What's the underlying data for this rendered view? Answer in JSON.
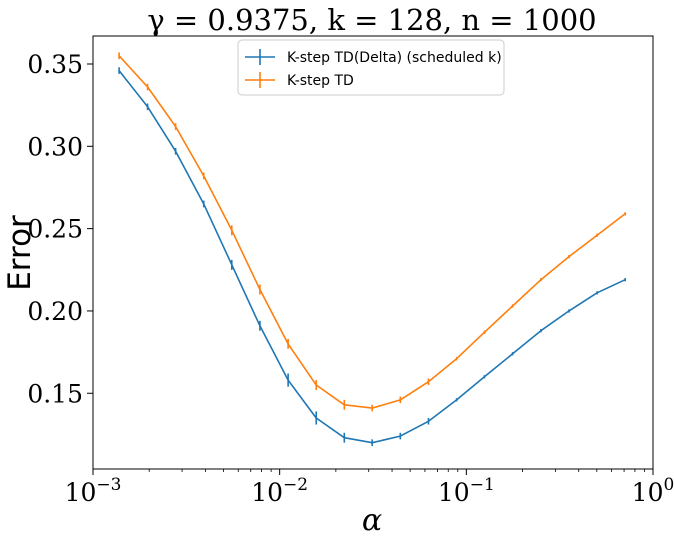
{
  "chart_data": {
    "type": "line",
    "title": "γ = 0.9375, k = 128, n = 1000",
    "xlabel": "α",
    "ylabel": "Error",
    "xscale": "log",
    "xlim": [
      0.001,
      1
    ],
    "ylim": [
      0.104,
      0.367
    ],
    "xticks": [
      {
        "value": 0.001,
        "label": "10",
        "exp": "−3"
      },
      {
        "value": 0.01,
        "label": "10",
        "exp": "−2"
      },
      {
        "value": 0.1,
        "label": "10",
        "exp": "−1"
      },
      {
        "value": 1,
        "label": "10",
        "exp": "0"
      }
    ],
    "yticks": [
      {
        "value": 0.35,
        "label": "0.35"
      },
      {
        "value": 0.3,
        "label": "0.30"
      },
      {
        "value": 0.25,
        "label": "0.25"
      },
      {
        "value": 0.2,
        "label": "0.20"
      },
      {
        "value": 0.15,
        "label": "0.15"
      }
    ],
    "grid": false,
    "legend_position": "top-center",
    "x": [
      0.00138,
      0.00196,
      0.00277,
      0.00392,
      0.00554,
      0.00784,
      0.0111,
      0.0157,
      0.0222,
      0.0313,
      0.0443,
      0.0627,
      0.0887,
      0.125,
      0.177,
      0.251,
      0.355,
      0.502,
      0.71
    ],
    "series": [
      {
        "name": "K-step TD(Delta) (scheduled k)",
        "color": "#1f77b4",
        "values": [
          0.346,
          0.324,
          0.297,
          0.265,
          0.228,
          0.191,
          0.158,
          0.135,
          0.123,
          0.12,
          0.124,
          0.133,
          0.146,
          0.16,
          0.174,
          0.188,
          0.2,
          0.211,
          0.219
        ],
        "errors": [
          0.002,
          0.002,
          0.002,
          0.002,
          0.003,
          0.003,
          0.004,
          0.004,
          0.003,
          0.002,
          0.002,
          0.002,
          0.001,
          0.001,
          0.001,
          0.001,
          0.001,
          0.001,
          0.001
        ]
      },
      {
        "name": "K-step TD",
        "color": "#ff7f0e",
        "values": [
          0.355,
          0.336,
          0.312,
          0.282,
          0.249,
          0.213,
          0.18,
          0.155,
          0.143,
          0.141,
          0.146,
          0.157,
          0.171,
          0.187,
          0.203,
          0.219,
          0.233,
          0.246,
          0.259
        ],
        "errors": [
          0.002,
          0.002,
          0.002,
          0.002,
          0.003,
          0.003,
          0.003,
          0.003,
          0.003,
          0.002,
          0.002,
          0.002,
          0.001,
          0.001,
          0.001,
          0.001,
          0.001,
          0.001,
          0.001
        ]
      }
    ]
  }
}
